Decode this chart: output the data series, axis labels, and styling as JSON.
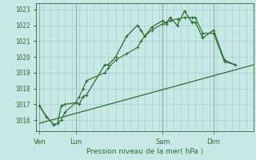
{
  "background_color": "#c8e8e8",
  "grid_color": "#a8cccc",
  "line_color": "#2d6e2d",
  "title": "Pression niveau de la mer( hPa )",
  "ylim": [
    1015.3,
    1023.4
  ],
  "yticks": [
    1016,
    1017,
    1018,
    1019,
    1020,
    1021,
    1022,
    1023
  ],
  "xlim": [
    0,
    30
  ],
  "day_labels": [
    "Ven",
    "Lun",
    "Sam",
    "Dim"
  ],
  "day_positions": [
    0.5,
    5.5,
    17.5,
    24.5
  ],
  "vline_positions": [
    0.5,
    5.5,
    17.5,
    24.5
  ],
  "minor_xticks_step": 1,
  "series1_x": [
    0.5,
    1.5,
    2.5,
    3.0,
    3.5,
    4.0,
    5.5,
    6.0,
    6.5,
    7.0,
    9.5,
    10.0,
    11.0,
    12.5,
    14.0,
    14.5,
    15.0,
    16.0,
    17.5,
    18.0,
    18.5,
    19.5,
    20.5,
    21.5,
    22.0,
    23.0,
    24.5,
    26.0,
    27.5
  ],
  "series1_y": [
    1016.9,
    1016.2,
    1015.7,
    1015.8,
    1016.9,
    1017.0,
    1017.1,
    1017.0,
    1017.5,
    1017.6,
    1019.5,
    1019.5,
    1020.0,
    1021.3,
    1022.0,
    1021.7,
    1021.3,
    1021.9,
    1022.3,
    1022.1,
    1022.5,
    1022.0,
    1022.9,
    1022.2,
    1022.2,
    1021.2,
    1021.7,
    1019.8,
    1019.5
  ],
  "series2_x": [
    0.5,
    30
  ],
  "series2_y": [
    1015.8,
    1019.5
  ],
  "series3_x": [
    0.5,
    1.5,
    2.5,
    3.0,
    3.5,
    4.0,
    5.5,
    6.0,
    6.5,
    7.0,
    9.5,
    10.0,
    11.0,
    12.5,
    14.0,
    14.5,
    15.0,
    16.0,
    17.5,
    18.0,
    18.5,
    19.5,
    20.5,
    21.5,
    22.0,
    23.0,
    24.5,
    26.0,
    27.5
  ],
  "series3_y": [
    1016.9,
    1016.2,
    1015.7,
    1015.8,
    1016.0,
    1016.5,
    1017.1,
    1017.5,
    1018.0,
    1018.5,
    1019.0,
    1019.3,
    1019.8,
    1020.2,
    1020.6,
    1021.0,
    1021.3,
    1021.7,
    1022.1,
    1022.2,
    1022.3,
    1022.4,
    1022.5,
    1022.5,
    1022.5,
    1021.5,
    1021.5,
    1019.7,
    1019.5
  ]
}
